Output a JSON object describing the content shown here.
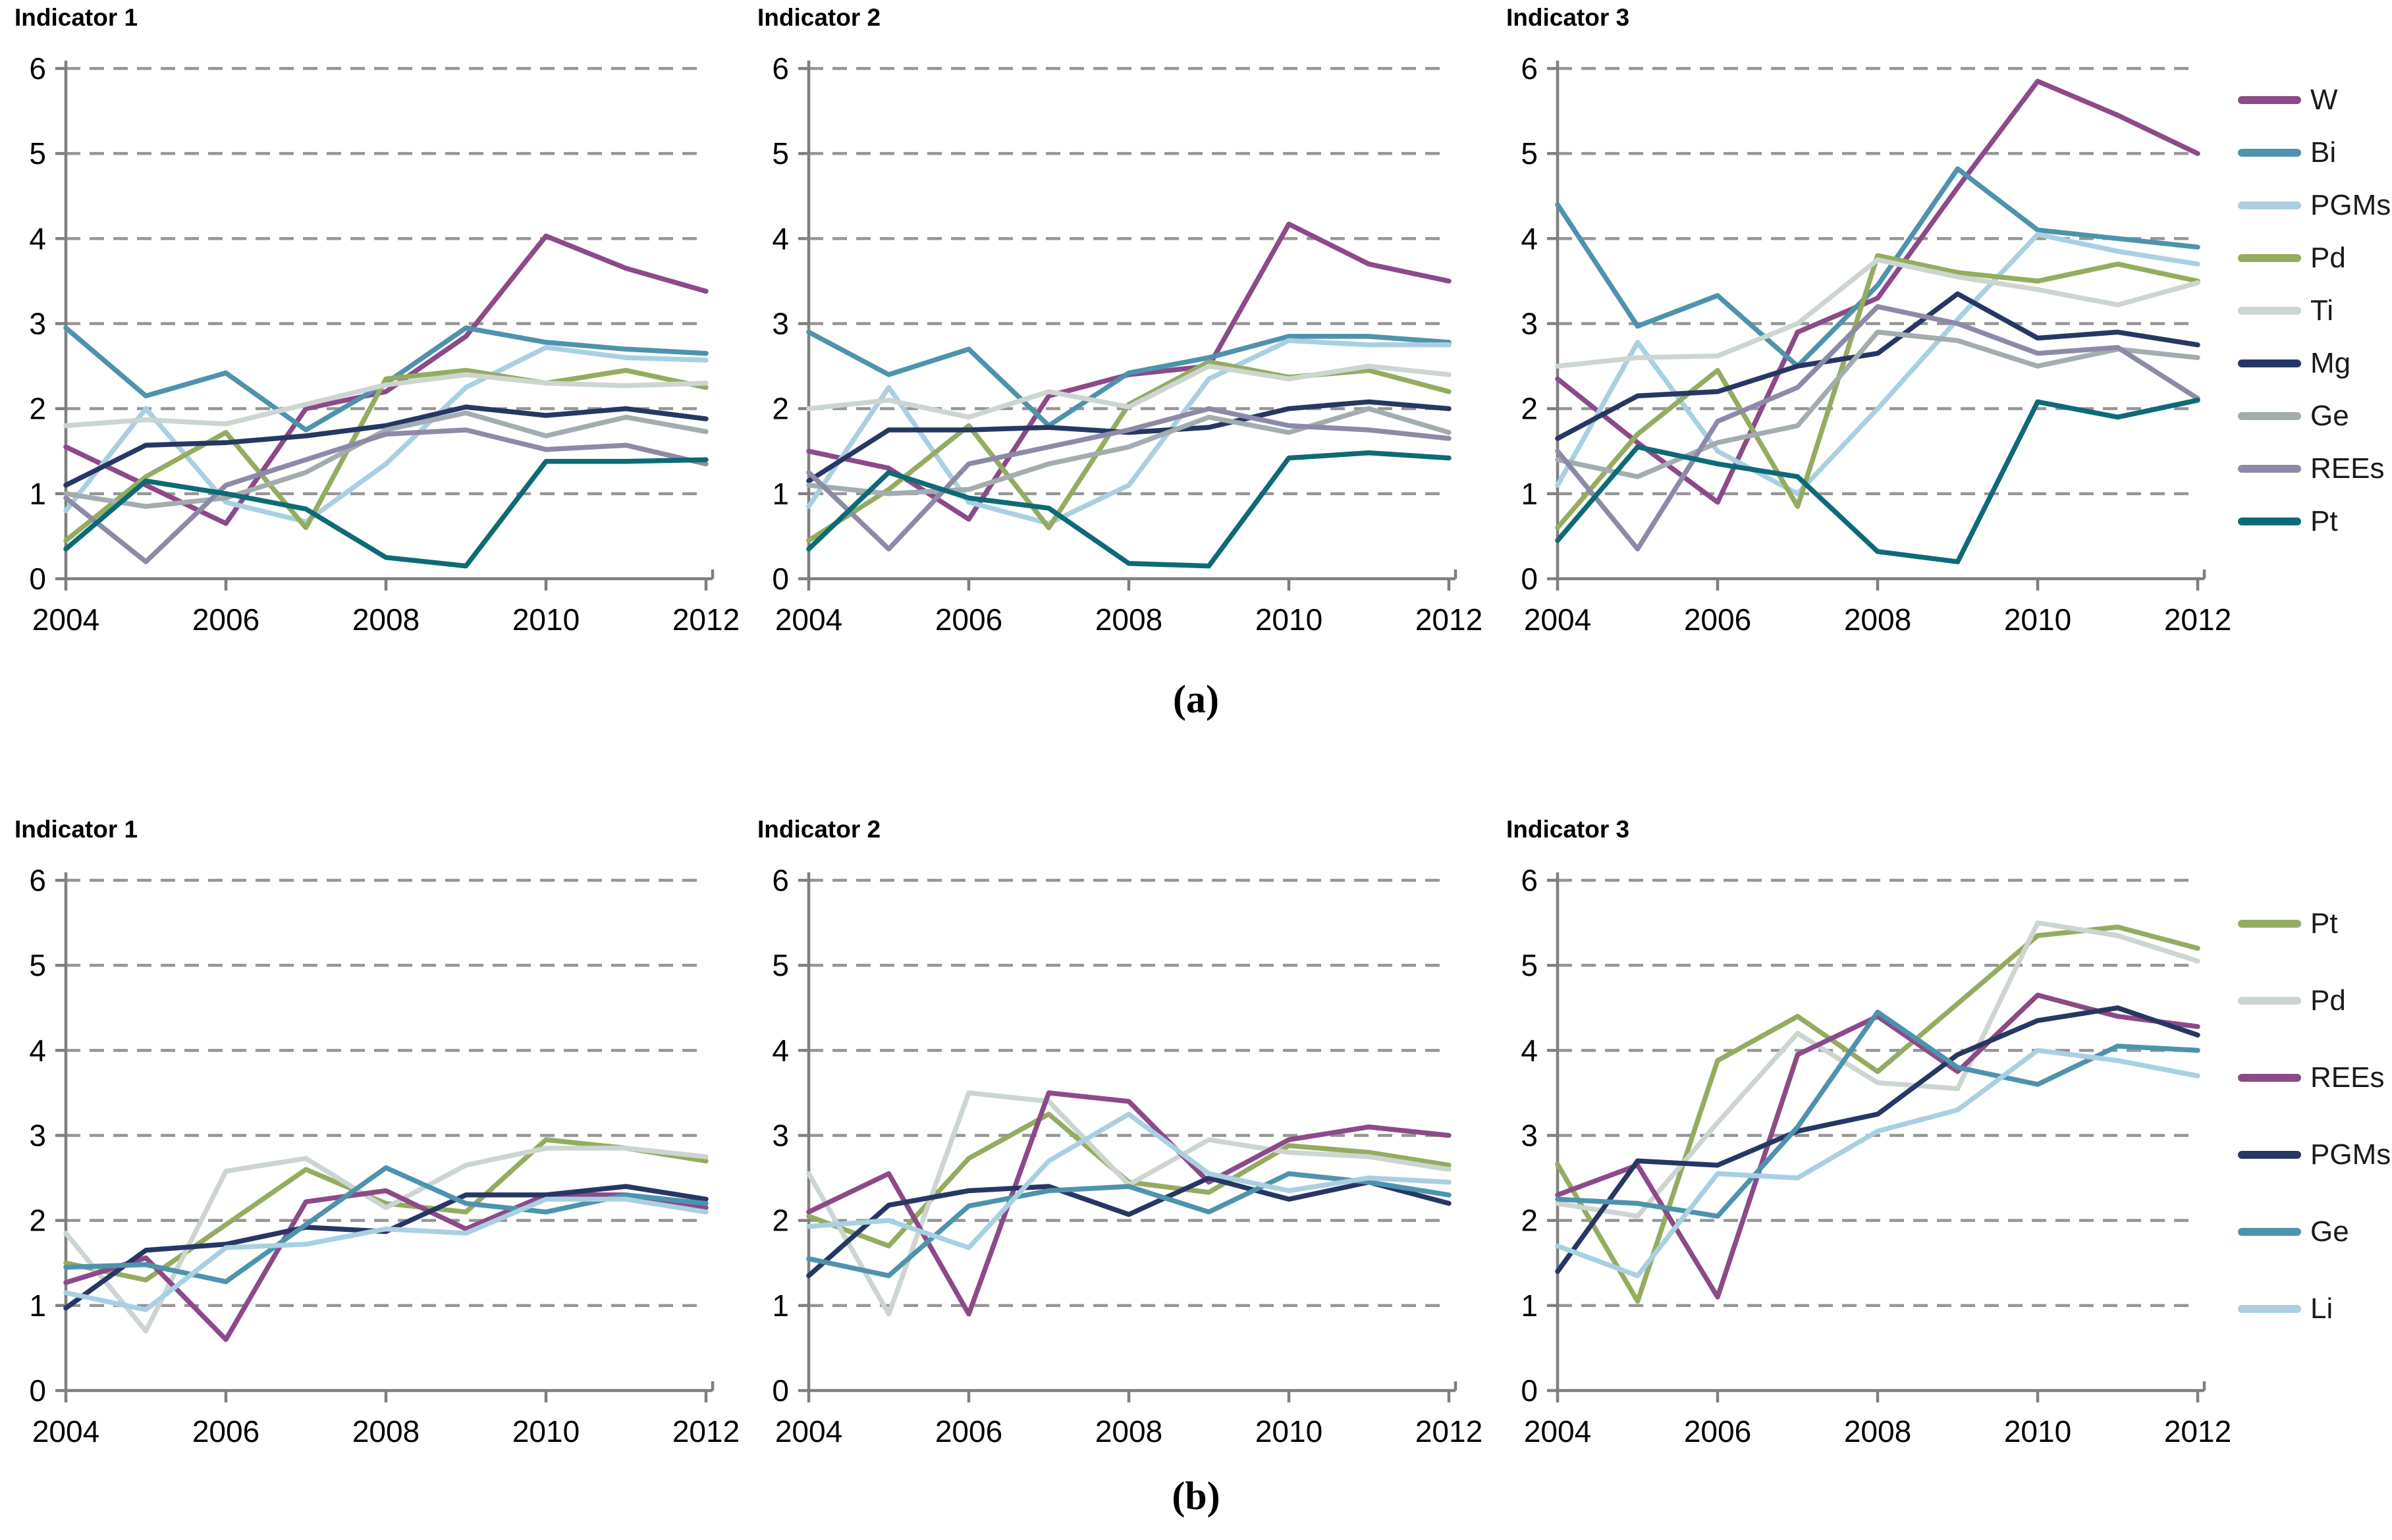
{
  "figure": {
    "captions": {
      "a": "(a)",
      "b": "(b)"
    },
    "axis": {
      "xlim": [
        2004,
        2012
      ],
      "ylim": [
        0,
        6
      ],
      "x_ticks": [
        2004,
        2006,
        2008,
        2010,
        2012
      ],
      "y_ticks": [
        0,
        1,
        2,
        3,
        4,
        5,
        6
      ],
      "grid": "dashed-horizontal"
    },
    "colors": {
      "purple": "#8c4a89",
      "steel_blue": "#4e93ad",
      "light_blue": "#a9d0e2",
      "green": "#94ac60",
      "light_gray": "#cdd5d1",
      "navy": "#273764",
      "gray": "#a3acae",
      "gray_purple": "#8d8aa8",
      "teal": "#0d6a76",
      "axis_line": "#7f7f7f",
      "gridline": "#969696"
    },
    "legend_a": [
      {
        "label": "W",
        "color": "#8c4a89"
      },
      {
        "label": "Bi",
        "color": "#4e93ad"
      },
      {
        "label": "PGMs",
        "color": "#a9d0e2"
      },
      {
        "label": "Pd",
        "color": "#94ac60"
      },
      {
        "label": "Ti",
        "color": "#cdd5d1"
      },
      {
        "label": "Mg",
        "color": "#273764"
      },
      {
        "label": "Ge",
        "color": "#a3acae"
      },
      {
        "label": "REEs",
        "color": "#8d8aa8"
      },
      {
        "label": "Pt",
        "color": "#0d6a76"
      }
    ],
    "legend_b": [
      {
        "label": "Pt",
        "color": "#94ac60"
      },
      {
        "label": "Pd",
        "color": "#cdd5d1"
      },
      {
        "label": "REEs",
        "color": "#8c4a89"
      },
      {
        "label": "PGMs",
        "color": "#273764"
      },
      {
        "label": "Ge",
        "color": "#4e93ad"
      },
      {
        "label": "Li",
        "color": "#a9d0e2"
      }
    ]
  },
  "chart_data": [
    {
      "id": "a1",
      "group": "a",
      "type": "line",
      "title": "Indicator 1",
      "x": [
        2004,
        2005,
        2006,
        2007,
        2008,
        2009,
        2010,
        2011,
        2012
      ],
      "ylim": [
        0,
        6
      ],
      "series": [
        {
          "name": "W",
          "color": "#8c4a89",
          "values": [
            1.55,
            1.1,
            0.65,
            2.0,
            2.2,
            2.85,
            4.03,
            3.65,
            3.38
          ]
        },
        {
          "name": "Bi",
          "color": "#4e93ad",
          "values": [
            2.95,
            2.15,
            2.42,
            1.75,
            2.3,
            2.95,
            2.78,
            2.7,
            2.65
          ]
        },
        {
          "name": "PGMs",
          "color": "#a9d0e2",
          "values": [
            0.8,
            2.0,
            0.9,
            0.67,
            1.35,
            2.25,
            2.72,
            2.6,
            2.57
          ]
        },
        {
          "name": "Pd",
          "color": "#94ac60",
          "values": [
            0.45,
            1.2,
            1.72,
            0.6,
            2.35,
            2.45,
            2.3,
            2.45,
            2.25
          ]
        },
        {
          "name": "Ti",
          "color": "#cdd5d1",
          "values": [
            1.8,
            1.87,
            1.82,
            2.05,
            2.28,
            2.4,
            2.3,
            2.27,
            2.3
          ]
        },
        {
          "name": "Mg",
          "color": "#273764",
          "values": [
            1.1,
            1.57,
            1.6,
            1.68,
            1.8,
            2.02,
            1.92,
            2.0,
            1.88
          ]
        },
        {
          "name": "Ge",
          "color": "#a3acae",
          "values": [
            1.0,
            0.85,
            0.95,
            1.25,
            1.75,
            1.95,
            1.68,
            1.9,
            1.73
          ]
        },
        {
          "name": "REEs",
          "color": "#8d8aa8",
          "values": [
            0.95,
            0.2,
            1.1,
            1.4,
            1.7,
            1.75,
            1.52,
            1.57,
            1.35
          ]
        },
        {
          "name": "Pt",
          "color": "#0d6a76",
          "values": [
            0.35,
            1.15,
            1.0,
            0.82,
            0.25,
            0.15,
            1.38,
            1.38,
            1.4
          ]
        }
      ]
    },
    {
      "id": "a2",
      "group": "a",
      "type": "line",
      "title": "Indicator 2",
      "x": [
        2004,
        2005,
        2006,
        2007,
        2008,
        2009,
        2010,
        2011,
        2012
      ],
      "ylim": [
        0,
        6
      ],
      "series": [
        {
          "name": "W",
          "color": "#8c4a89",
          "values": [
            1.5,
            1.3,
            0.7,
            2.15,
            2.4,
            2.5,
            4.17,
            3.7,
            3.5
          ]
        },
        {
          "name": "Bi",
          "color": "#4e93ad",
          "values": [
            2.9,
            2.4,
            2.7,
            1.8,
            2.42,
            2.6,
            2.85,
            2.85,
            2.78
          ]
        },
        {
          "name": "PGMs",
          "color": "#a9d0e2",
          "values": [
            0.85,
            2.25,
            0.9,
            0.65,
            1.1,
            2.35,
            2.8,
            2.75,
            2.75
          ]
        },
        {
          "name": "Pd",
          "color": "#94ac60",
          "values": [
            0.45,
            1.05,
            1.8,
            0.6,
            2.05,
            2.55,
            2.37,
            2.45,
            2.2
          ]
        },
        {
          "name": "Ti",
          "color": "#cdd5d1",
          "values": [
            2.0,
            2.1,
            1.9,
            2.2,
            2.02,
            2.5,
            2.35,
            2.5,
            2.4
          ]
        },
        {
          "name": "Mg",
          "color": "#273764",
          "values": [
            1.15,
            1.75,
            1.75,
            1.78,
            1.72,
            1.78,
            2.0,
            2.08,
            2.0
          ]
        },
        {
          "name": "Ge",
          "color": "#a3acae",
          "values": [
            1.1,
            1.0,
            1.05,
            1.35,
            1.55,
            1.9,
            1.72,
            2.0,
            1.72
          ]
        },
        {
          "name": "REEs",
          "color": "#8d8aa8",
          "values": [
            1.25,
            0.35,
            1.35,
            1.55,
            1.75,
            2.0,
            1.8,
            1.75,
            1.65
          ]
        },
        {
          "name": "Pt",
          "color": "#0d6a76",
          "values": [
            0.35,
            1.25,
            0.95,
            0.83,
            0.18,
            0.15,
            1.42,
            1.48,
            1.42
          ]
        }
      ]
    },
    {
      "id": "a3",
      "group": "a",
      "type": "line",
      "title": "Indicator 3",
      "x": [
        2004,
        2005,
        2006,
        2007,
        2008,
        2009,
        2010,
        2011,
        2012
      ],
      "ylim": [
        0,
        6
      ],
      "series": [
        {
          "name": "W",
          "color": "#8c4a89",
          "values": [
            2.35,
            1.6,
            0.9,
            2.9,
            3.3,
            4.6,
            5.85,
            5.45,
            5.0
          ]
        },
        {
          "name": "Bi",
          "color": "#4e93ad",
          "values": [
            4.4,
            2.97,
            3.33,
            2.5,
            3.45,
            4.82,
            4.1,
            4.0,
            3.9
          ]
        },
        {
          "name": "PGMs",
          "color": "#a9d0e2",
          "values": [
            1.1,
            2.78,
            1.5,
            1.0,
            2.0,
            3.05,
            4.05,
            3.85,
            3.7
          ]
        },
        {
          "name": "Pd",
          "color": "#94ac60",
          "values": [
            0.6,
            1.7,
            2.45,
            0.85,
            3.8,
            3.6,
            3.5,
            3.7,
            3.5
          ]
        },
        {
          "name": "Ti",
          "color": "#cdd5d1",
          "values": [
            2.5,
            2.6,
            2.62,
            3.0,
            3.75,
            3.55,
            3.4,
            3.22,
            3.48
          ]
        },
        {
          "name": "Mg",
          "color": "#273764",
          "values": [
            1.65,
            2.15,
            2.2,
            2.5,
            2.65,
            3.35,
            2.83,
            2.9,
            2.75
          ]
        },
        {
          "name": "Ge",
          "color": "#a3acae",
          "values": [
            1.4,
            1.2,
            1.6,
            1.8,
            2.9,
            2.8,
            2.5,
            2.7,
            2.6
          ]
        },
        {
          "name": "REEs",
          "color": "#8d8aa8",
          "values": [
            1.5,
            0.35,
            1.85,
            2.25,
            3.2,
            3.0,
            2.65,
            2.72,
            2.12
          ]
        },
        {
          "name": "Pt",
          "color": "#0d6a76",
          "values": [
            0.45,
            1.55,
            1.35,
            1.2,
            0.32,
            0.2,
            2.08,
            1.9,
            2.1
          ]
        }
      ]
    },
    {
      "id": "b1",
      "group": "b",
      "type": "line",
      "title": "Indicator 1",
      "x": [
        2004,
        2005,
        2006,
        2007,
        2008,
        2009,
        2010,
        2011,
        2012
      ],
      "ylim": [
        0,
        6
      ],
      "series": [
        {
          "name": "Pt",
          "color": "#94ac60",
          "values": [
            1.5,
            1.3,
            1.95,
            2.6,
            2.2,
            2.1,
            2.95,
            2.85,
            2.7
          ]
        },
        {
          "name": "Pd",
          "color": "#cdd5d1",
          "values": [
            1.85,
            0.7,
            2.58,
            2.73,
            2.15,
            2.65,
            2.85,
            2.85,
            2.75
          ]
        },
        {
          "name": "REEs",
          "color": "#8c4a89",
          "values": [
            1.27,
            1.56,
            0.6,
            2.22,
            2.35,
            1.9,
            2.3,
            2.3,
            2.15
          ]
        },
        {
          "name": "PGMs",
          "color": "#273764",
          "values": [
            0.97,
            1.65,
            1.72,
            1.92,
            1.87,
            2.3,
            2.3,
            2.4,
            2.25
          ]
        },
        {
          "name": "Ge",
          "color": "#4e93ad",
          "values": [
            1.45,
            1.48,
            1.28,
            1.95,
            2.62,
            2.2,
            2.1,
            2.3,
            2.2
          ]
        },
        {
          "name": "Li",
          "color": "#a9d0e2",
          "values": [
            1.15,
            0.95,
            1.68,
            1.72,
            1.9,
            1.85,
            2.25,
            2.25,
            2.1
          ]
        }
      ]
    },
    {
      "id": "b2",
      "group": "b",
      "type": "line",
      "title": "Indicator 2",
      "x": [
        2004,
        2005,
        2006,
        2007,
        2008,
        2009,
        2010,
        2011,
        2012
      ],
      "ylim": [
        0,
        6
      ],
      "series": [
        {
          "name": "Pt",
          "color": "#94ac60",
          "values": [
            2.05,
            1.7,
            2.73,
            3.25,
            2.45,
            2.33,
            2.88,
            2.8,
            2.65
          ]
        },
        {
          "name": "Pd",
          "color": "#cdd5d1",
          "values": [
            2.55,
            0.9,
            3.5,
            3.4,
            2.42,
            2.95,
            2.8,
            2.75,
            2.6
          ]
        },
        {
          "name": "REEs",
          "color": "#8c4a89",
          "values": [
            2.1,
            2.55,
            0.9,
            3.5,
            3.4,
            2.45,
            2.95,
            3.1,
            3.0
          ]
        },
        {
          "name": "PGMs",
          "color": "#273764",
          "values": [
            1.35,
            2.18,
            2.35,
            2.4,
            2.07,
            2.5,
            2.25,
            2.45,
            2.2
          ]
        },
        {
          "name": "Ge",
          "color": "#4e93ad",
          "values": [
            1.55,
            1.35,
            2.17,
            2.35,
            2.4,
            2.1,
            2.55,
            2.45,
            2.3
          ]
        },
        {
          "name": "Li",
          "color": "#a9d0e2",
          "values": [
            1.93,
            2.0,
            1.68,
            2.7,
            3.25,
            2.55,
            2.35,
            2.5,
            2.45
          ]
        }
      ]
    },
    {
      "id": "b3",
      "group": "b",
      "type": "line",
      "title": "Indicator 3",
      "x": [
        2004,
        2005,
        2006,
        2007,
        2008,
        2009,
        2010,
        2011,
        2012
      ],
      "ylim": [
        0,
        6
      ],
      "series": [
        {
          "name": "Pt",
          "color": "#94ac60",
          "values": [
            2.66,
            1.05,
            3.88,
            4.4,
            3.75,
            4.55,
            5.35,
            5.45,
            5.2
          ]
        },
        {
          "name": "Pd",
          "color": "#cdd5d1",
          "values": [
            2.2,
            2.05,
            3.15,
            4.2,
            3.62,
            3.55,
            5.5,
            5.35,
            5.05
          ]
        },
        {
          "name": "REEs",
          "color": "#8c4a89",
          "values": [
            2.3,
            2.65,
            1.1,
            3.95,
            4.4,
            3.75,
            4.65,
            4.4,
            4.28
          ]
        },
        {
          "name": "PGMs",
          "color": "#273764",
          "values": [
            1.4,
            2.7,
            2.65,
            3.05,
            3.25,
            3.95,
            4.35,
            4.5,
            4.18
          ]
        },
        {
          "name": "Ge",
          "color": "#4e93ad",
          "values": [
            2.25,
            2.2,
            2.05,
            3.1,
            4.45,
            3.8,
            3.6,
            4.05,
            4.0
          ]
        },
        {
          "name": "Li",
          "color": "#a9d0e2",
          "values": [
            1.7,
            1.35,
            2.55,
            2.5,
            3.05,
            3.3,
            4.0,
            3.88,
            3.7
          ]
        }
      ]
    }
  ]
}
